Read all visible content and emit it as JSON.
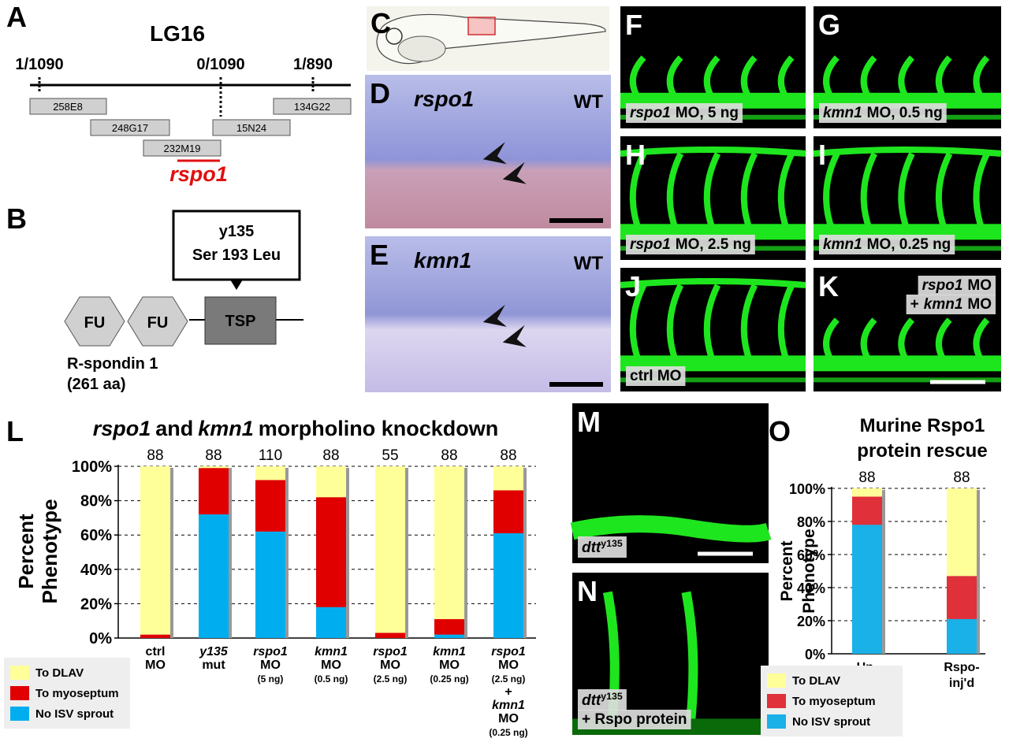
{
  "panel_a": {
    "label": "A",
    "title": "LG16",
    "markers": [
      "1/1090",
      "0/1090",
      "1/890"
    ],
    "clones": [
      "258E8",
      "248G17",
      "232M19",
      "15N24",
      "134G22"
    ],
    "gene": "rspo1"
  },
  "panel_b": {
    "label": "B",
    "mutation": [
      "y135",
      "Ser 193 Leu"
    ],
    "domains": [
      "FU",
      "FU",
      "TSP"
    ],
    "protein": [
      "R-spondin 1",
      "(261 aa)"
    ]
  },
  "panel_c": {
    "label": "C"
  },
  "images": [
    {
      "label": "D",
      "caption": [
        [
          {
            "text": "rspo1",
            "italic": true
          }
        ]
      ],
      "tag": "WT"
    },
    {
      "label": "E",
      "caption": [
        [
          {
            "text": "kmn1",
            "italic": true
          }
        ]
      ],
      "tag": "WT"
    },
    {
      "label": "F",
      "caption": [
        [
          {
            "text": "rspo1",
            "italic": true
          },
          "MO, 5 ng"
        ]
      ]
    },
    {
      "label": "G",
      "caption": [
        [
          {
            "text": "kmn1",
            "italic": true
          },
          "MO, 0.5 ng"
        ]
      ]
    },
    {
      "label": "H",
      "caption": [
        [
          {
            "text": "rspo1",
            "italic": true
          },
          "MO, 2.5 ng"
        ]
      ]
    },
    {
      "label": "I",
      "caption": [
        [
          {
            "text": "kmn1",
            "italic": true
          },
          "MO, 0.25 ng"
        ]
      ]
    },
    {
      "label": "J",
      "caption": [
        [
          "ctrl MO"
        ]
      ]
    },
    {
      "label": "K",
      "caption": [
        [
          {
            "text": "rspo1",
            "italic": true
          },
          "MO"
        ],
        [
          "+",
          {
            "text": "kmn1",
            "italic": true
          },
          "MO"
        ]
      ]
    },
    {
      "label": "M",
      "caption": [
        [
          {
            "text": "dtt",
            "italic": true
          },
          {
            "text": "y135",
            "sup": true
          }
        ]
      ]
    },
    {
      "label": "N",
      "caption": [
        [
          {
            "text": "dtt",
            "italic": true
          },
          {
            "text": "y135",
            "sup": true
          }
        ],
        [
          "+ Rspo protein"
        ]
      ]
    }
  ],
  "chart_data": [
    {
      "type": "bar",
      "stacked": true,
      "label": "L",
      "title": [
        [
          {
            "text": "rspo1",
            "italic": true
          },
          "and",
          {
            "text": "kmn1",
            "italic": true
          },
          "morpholino knockdown"
        ]
      ],
      "ylabel": [
        "Percent",
        "Phenotype"
      ],
      "categories": [
        [
          [
            "ctrl"
          ],
          [
            "MO"
          ]
        ],
        [
          [
            {
              "text": "y135",
              "italic": true
            }
          ],
          [
            "mut"
          ]
        ],
        [
          [
            {
              "text": "rspo1",
              "italic": true
            }
          ],
          [
            "MO"
          ],
          [
            "(5 ng)"
          ]
        ],
        [
          [
            {
              "text": "kmn1",
              "italic": true
            }
          ],
          [
            "MO"
          ],
          [
            "(0.5 ng)"
          ]
        ],
        [
          [
            {
              "text": "rspo1",
              "italic": true
            }
          ],
          [
            "MO"
          ],
          [
            "(2.5 ng)"
          ]
        ],
        [
          [
            {
              "text": "kmn1",
              "italic": true
            }
          ],
          [
            "MO"
          ],
          [
            "(0.25 ng)"
          ]
        ],
        [
          [
            {
              "text": "rspo1",
              "italic": true
            }
          ],
          [
            "MO"
          ],
          [
            "(2.5 ng)"
          ],
          [
            "+"
          ],
          [
            {
              "text": "kmn1",
              "italic": true
            }
          ],
          [
            "MO"
          ],
          [
            "(0.25 ng)"
          ]
        ]
      ],
      "counts": [
        88,
        88,
        110,
        88,
        55,
        88,
        88
      ],
      "series": [
        {
          "name": "No ISV sprout",
          "color": "#00aeef",
          "values": [
            0,
            72,
            62,
            18,
            0,
            2,
            61
          ]
        },
        {
          "name": "To myoseptum",
          "color": "#e00000",
          "values": [
            2,
            27,
            30,
            64,
            3,
            9,
            25
          ]
        },
        {
          "name": "To DLAV",
          "color": "#ffff99",
          "values": [
            98,
            1,
            8,
            18,
            97,
            89,
            14
          ]
        }
      ],
      "ylim": [
        0,
        100
      ],
      "yticks": [
        {
          "value": 0,
          "label": "0%"
        },
        {
          "value": 20,
          "label": "20%"
        },
        {
          "value": 40,
          "label": "40%"
        },
        {
          "value": 60,
          "label": "60%"
        },
        {
          "value": 80,
          "label": "80%"
        },
        {
          "value": 100,
          "label": "100%"
        }
      ],
      "grid": true,
      "legend": "bottom-left"
    },
    {
      "type": "bar",
      "stacked": true,
      "label": "O",
      "title": [
        [
          "Murine Rspo1"
        ],
        [
          "protein rescue"
        ]
      ],
      "ylabel": [
        "Percent",
        "Phenotype"
      ],
      "categories": [
        [
          [
            "Un-"
          ],
          [
            "inj'd"
          ]
        ],
        [
          [
            "Rspo-"
          ],
          [
            "inj'd"
          ]
        ]
      ],
      "counts": [
        88,
        88
      ],
      "series": [
        {
          "name": "No ISV sprout",
          "color": "#1ab0e8",
          "values": [
            78,
            21
          ]
        },
        {
          "name": "To myoseptum",
          "color": "#e0303a",
          "values": [
            17,
            26
          ]
        },
        {
          "name": "To DLAV",
          "color": "#ffff99",
          "values": [
            5,
            53
          ]
        }
      ],
      "ylim": [
        0,
        100
      ],
      "yticks": [
        {
          "value": 0,
          "label": "0%"
        },
        {
          "value": 20,
          "label": "20%"
        },
        {
          "value": 40,
          "label": "40%"
        },
        {
          "value": 60,
          "label": "60%"
        },
        {
          "value": 80,
          "label": "80%"
        },
        {
          "value": 100,
          "label": "100%"
        }
      ],
      "grid": true,
      "legend": "bottom-left"
    }
  ]
}
